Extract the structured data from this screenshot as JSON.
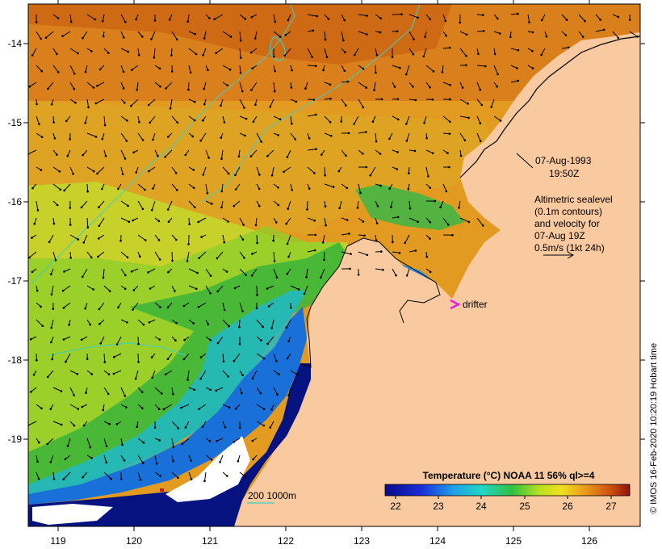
{
  "map": {
    "date_label": "07-Aug-1993",
    "time_label": "19:50Z",
    "legend_lines": [
      "Altimetric sealevel",
      "(0.1m contours)",
      "and velocity for",
      "07-Aug 19Z",
      "0.5m/s (1kt 24h)"
    ],
    "drifter_label": "drifter",
    "depth_label": "200  1000m",
    "credit": "© IMOS 16-Feb-2020 10:20:19 Hobart time",
    "x_ticks": [
      "119",
      "120",
      "121",
      "122",
      "123",
      "124",
      "125",
      "126"
    ],
    "y_ticks": [
      "-14",
      "-15",
      "-16",
      "-17",
      "-18",
      "-19"
    ]
  },
  "colorbar": {
    "title": "Temperature (°C) NOAA 11 56% ql>=4",
    "ticks": [
      "22",
      "23",
      "24",
      "25",
      "26",
      "27"
    ]
  },
  "colors": {
    "land": "#f9c9a0",
    "deep": "#05127f",
    "contour": "#3fcfc4",
    "drifter": "#e020e0",
    "cloud": "#ffffff"
  }
}
